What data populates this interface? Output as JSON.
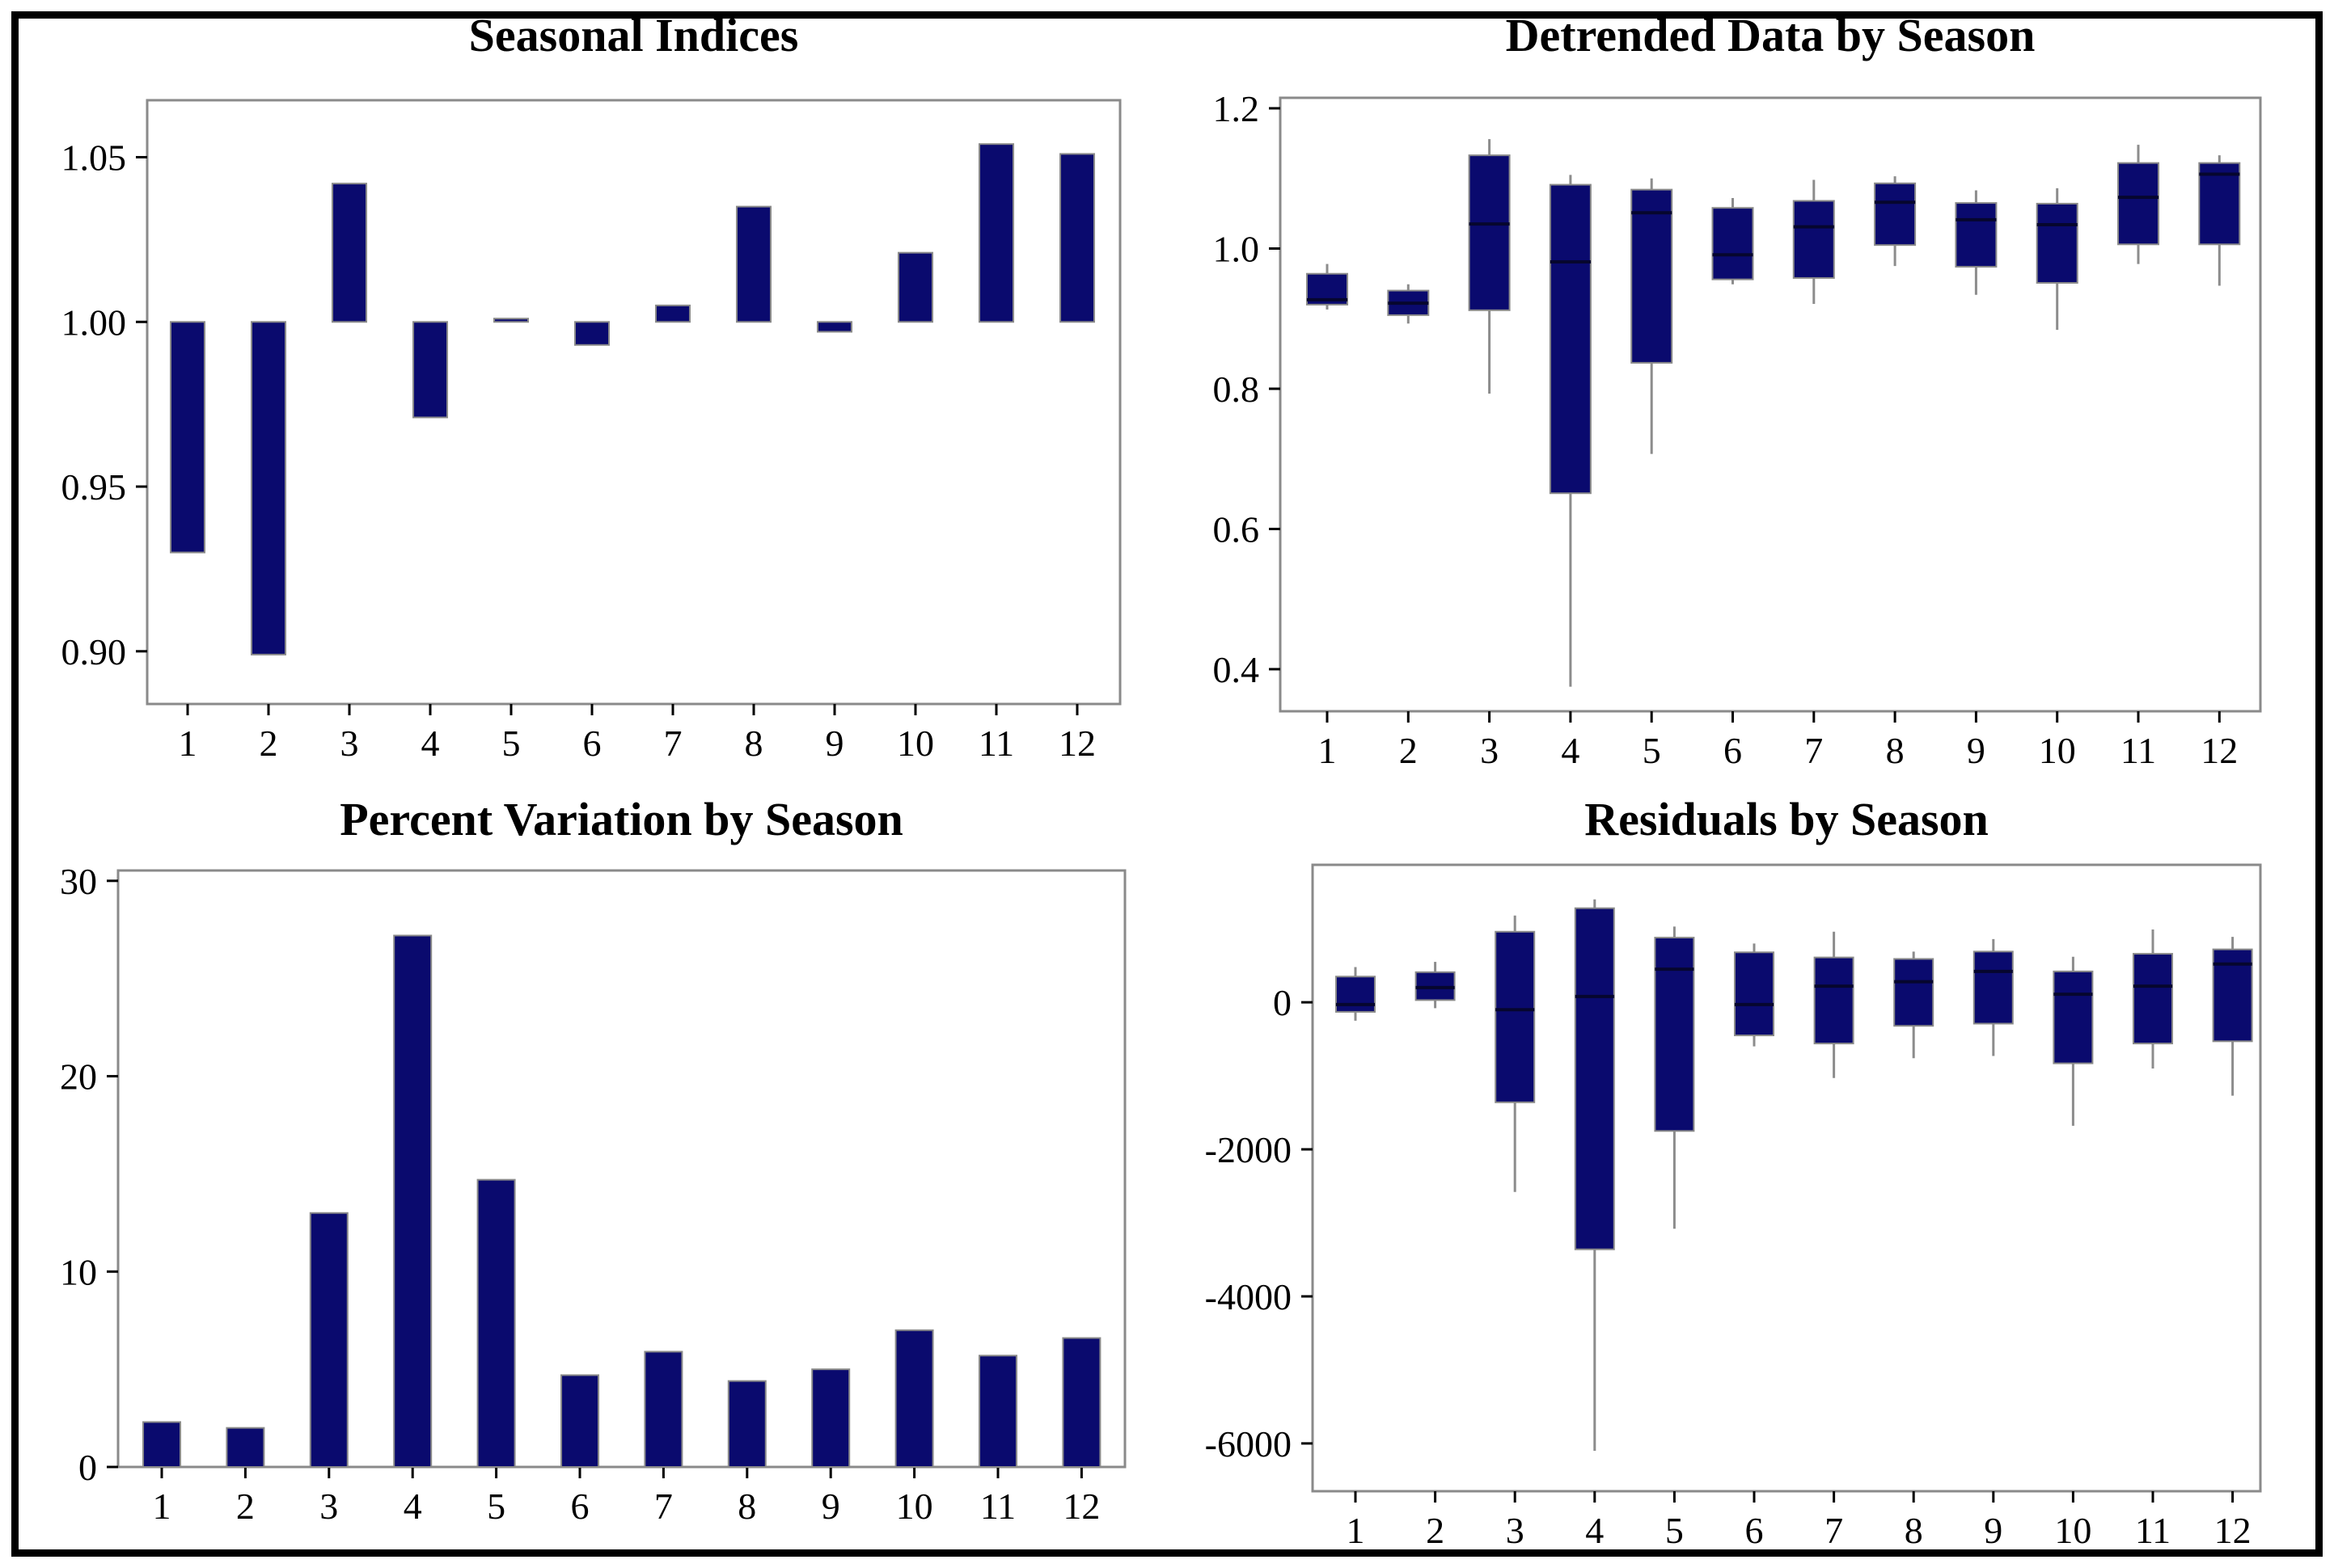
{
  "figure": {
    "background": "#ffffff",
    "border_color": "#000000"
  },
  "colors": {
    "bar_fill": "#0a0a6e",
    "bar_border": "#8a8a8a",
    "whisker": "#8c8c8c",
    "median_line": "#06062e",
    "frame": "#8a8a8a",
    "text": "#000000"
  },
  "chart_data": [
    {
      "id": "seasonal-indices",
      "type": "bar",
      "title": "Seasonal Indices",
      "baseline": 1.0,
      "categories": [
        "1",
        "2",
        "3",
        "4",
        "5",
        "6",
        "7",
        "8",
        "9",
        "10",
        "11",
        "12"
      ],
      "values": [
        0.93,
        0.899,
        1.042,
        0.971,
        1.001,
        0.993,
        1.005,
        1.035,
        0.997,
        1.021,
        1.054,
        1.051
      ],
      "yticks": [
        1.05,
        1.0,
        0.95,
        0.9
      ],
      "ytick_labels": [
        "1.05",
        "1.00",
        "0.95",
        "0.90"
      ],
      "ylim": [
        0.884,
        1.0673
      ],
      "grid": false,
      "legend": null
    },
    {
      "id": "detrended-data",
      "type": "boxplot",
      "title": "Detrended Data by Season",
      "categories": [
        "1",
        "2",
        "3",
        "4",
        "5",
        "6",
        "7",
        "8",
        "9",
        "10",
        "11",
        "12"
      ],
      "boxes": [
        {
          "lo": 0.913,
          "q1": 0.92,
          "med": 0.927,
          "q3": 0.964,
          "hi": 0.978
        },
        {
          "lo": 0.893,
          "q1": 0.905,
          "med": 0.922,
          "q3": 0.94,
          "hi": 0.949
        },
        {
          "lo": 0.793,
          "q1": 0.912,
          "med": 1.035,
          "q3": 1.133,
          "hi": 1.156
        },
        {
          "lo": 0.375,
          "q1": 0.651,
          "med": 0.981,
          "q3": 1.091,
          "hi": 1.105
        },
        {
          "lo": 0.707,
          "q1": 0.837,
          "med": 1.051,
          "q3": 1.084,
          "hi": 1.1
        },
        {
          "lo": 0.949,
          "q1": 0.956,
          "med": 0.991,
          "q3": 1.058,
          "hi": 1.072
        },
        {
          "lo": 0.921,
          "q1": 0.958,
          "med": 1.031,
          "q3": 1.068,
          "hi": 1.098
        },
        {
          "lo": 0.975,
          "q1": 1.005,
          "med": 1.066,
          "q3": 1.093,
          "hi": 1.103
        },
        {
          "lo": 0.934,
          "q1": 0.974,
          "med": 1.041,
          "q3": 1.065,
          "hi": 1.083
        },
        {
          "lo": 0.884,
          "q1": 0.951,
          "med": 1.034,
          "q3": 1.064,
          "hi": 1.086
        },
        {
          "lo": 0.978,
          "q1": 1.006,
          "med": 1.073,
          "q3": 1.122,
          "hi": 1.148
        },
        {
          "lo": 0.947,
          "q1": 1.006,
          "med": 1.106,
          "q3": 1.122,
          "hi": 1.133
        }
      ],
      "yticks": [
        1.2,
        1.0,
        0.8,
        0.6,
        0.4
      ],
      "ytick_labels": [
        "1.2",
        "1.0",
        "0.8",
        "0.6",
        "0.4"
      ],
      "ylim": [
        0.34,
        1.215
      ],
      "grid": false,
      "legend": null
    },
    {
      "id": "percent-variation",
      "type": "bar",
      "title": "Percent Variation by Season",
      "baseline": 0,
      "categories": [
        "1",
        "2",
        "3",
        "4",
        "5",
        "6",
        "7",
        "8",
        "9",
        "10",
        "11",
        "12"
      ],
      "values": [
        2.3,
        2.0,
        13.0,
        27.2,
        14.7,
        4.7,
        5.9,
        4.4,
        5.0,
        7.0,
        5.7,
        6.6
      ],
      "yticks": [
        30,
        20,
        10,
        0
      ],
      "ytick_labels": [
        "30",
        "20",
        "10",
        "0"
      ],
      "ylim": [
        0,
        30.53
      ],
      "grid": false,
      "legend": null
    },
    {
      "id": "residuals",
      "type": "boxplot",
      "title": "Residuals by Season",
      "categories": [
        "1",
        "2",
        "3",
        "4",
        "5",
        "6",
        "7",
        "8",
        "9",
        "10",
        "11",
        "12"
      ],
      "boxes": [
        {
          "lo": -250,
          "q1": -130,
          "med": -30,
          "q3": 350,
          "hi": 480
        },
        {
          "lo": -80,
          "q1": 30,
          "med": 200,
          "q3": 410,
          "hi": 550
        },
        {
          "lo": -2580,
          "q1": -1360,
          "med": -100,
          "q3": 960,
          "hi": 1180
        },
        {
          "lo": -6100,
          "q1": -3360,
          "med": 80,
          "q3": 1280,
          "hi": 1400
        },
        {
          "lo": -3080,
          "q1": -1750,
          "med": 450,
          "q3": 880,
          "hi": 1030
        },
        {
          "lo": -600,
          "q1": -450,
          "med": -30,
          "q3": 680,
          "hi": 800
        },
        {
          "lo": -1030,
          "q1": -560,
          "med": 220,
          "q3": 610,
          "hi": 960
        },
        {
          "lo": -760,
          "q1": -320,
          "med": 280,
          "q3": 590,
          "hi": 690
        },
        {
          "lo": -730,
          "q1": -290,
          "med": 420,
          "q3": 690,
          "hi": 860
        },
        {
          "lo": -1680,
          "q1": -830,
          "med": 110,
          "q3": 420,
          "hi": 620
        },
        {
          "lo": -900,
          "q1": -560,
          "med": 220,
          "q3": 660,
          "hi": 990
        },
        {
          "lo": -1270,
          "q1": -530,
          "med": 520,
          "q3": 720,
          "hi": 890
        }
      ],
      "yticks": [
        0,
        -2000,
        -4000,
        -6000
      ],
      "ytick_labels": [
        "0",
        "-2000",
        "-4000",
        "-6000"
      ],
      "ylim": [
        -6650,
        1870
      ],
      "grid": false,
      "legend": null
    }
  ]
}
